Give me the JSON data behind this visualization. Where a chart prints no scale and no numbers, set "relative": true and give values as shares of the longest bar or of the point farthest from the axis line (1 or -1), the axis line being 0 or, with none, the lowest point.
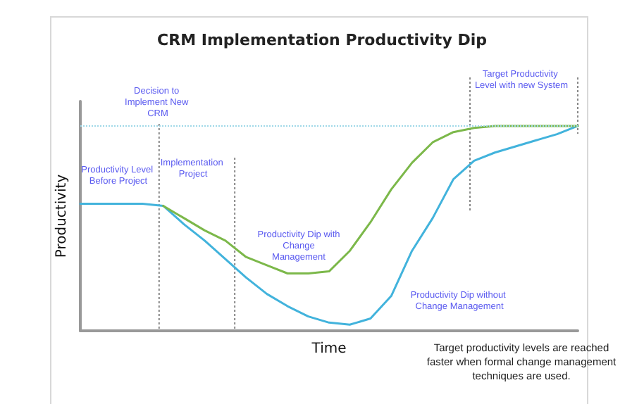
{
  "chart_data": {
    "type": "line",
    "title": "CRM Implementation Productivity Dip",
    "xlabel": "Time",
    "ylabel": "Productivity",
    "relative": true,
    "grid": false,
    "marker": "none",
    "line_style": "solid",
    "categories": [
      null,
      null,
      null,
      null,
      null,
      null,
      null,
      null,
      null,
      null,
      null,
      null,
      null,
      null,
      null,
      null,
      null,
      null,
      null,
      null,
      null,
      null,
      null,
      null,
      null
    ],
    "series": [
      {
        "color": "#42b3dc",
        "values": [
          0.62,
          0.62,
          0.62,
          0.62,
          0.61,
          0.52,
          0.44,
          0.35,
          0.26,
          0.18,
          0.12,
          0.07,
          0.04,
          0.03,
          0.06,
          0.17,
          0.39,
          0.55,
          0.74,
          0.83,
          0.87,
          0.9,
          0.93,
          0.96,
          1
        ]
      },
      {
        "color": "#7cb84a",
        "values": [
          null,
          null,
          null,
          null,
          0.61,
          0.55,
          0.49,
          0.44,
          0.36,
          0.32,
          0.28,
          0.28,
          0.29,
          0.39,
          0.53,
          0.69,
          0.82,
          0.92,
          0.97,
          0.99,
          1,
          1,
          1,
          1,
          1
        ]
      }
    ],
    "ref_lines": [
      {
        "axis": "y",
        "value": 1,
        "color": "#9fd8e8",
        "line_style": "dotted"
      }
    ],
    "annotations": [
      "Productivity Level Before Project",
      "Decision to Implement New CRM",
      "Implementation Project",
      "Target Productivity Level with new System",
      "Productivity Dip with Change Management",
      "Productivity Dip without Change Management",
      "Target productivity levels are reached faster when formal change management techniques are used."
    ]
  }
}
